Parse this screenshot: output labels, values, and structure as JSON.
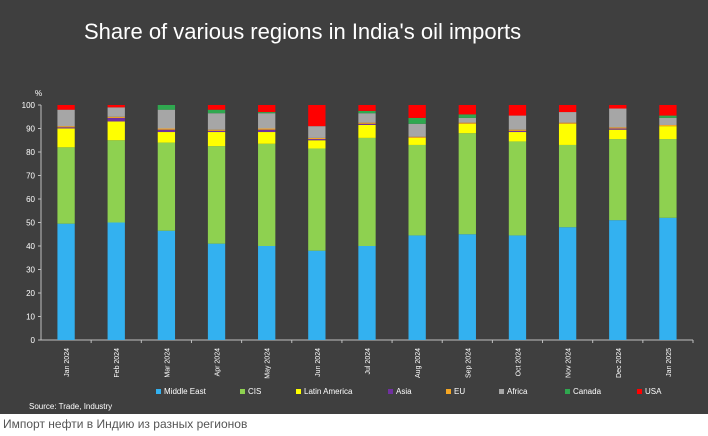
{
  "chart_data": {
    "type": "bar",
    "stacked": true,
    "title": "Share of various regions in India's oil imports",
    "ylabel": "%",
    "ylim": [
      0,
      100
    ],
    "yticks": [
      0,
      10,
      20,
      30,
      40,
      50,
      60,
      70,
      80,
      90,
      100
    ],
    "grid": false,
    "legend_position": "bottom",
    "categories": [
      "Jan 2024",
      "Feb 2024",
      "Mar 2024",
      "Apr 2024",
      "May 2024",
      "Jun 2024",
      "Jul 2024",
      "Aug 2024",
      "Sep 2024",
      "Oct 2024",
      "Nov 2024",
      "Dec 2024",
      "Jan 2025"
    ],
    "series": [
      {
        "name": "Middle East",
        "color": "#33b1f0",
        "values": [
          49.5,
          50,
          46.5,
          41,
          40,
          38,
          40,
          44.5,
          45,
          44.5,
          48,
          51,
          52
        ]
      },
      {
        "name": "CIS",
        "color": "#8ed150",
        "values": [
          32.5,
          35,
          37.5,
          41.5,
          43.5,
          43.5,
          46,
          38.5,
          43,
          40,
          35,
          34.5,
          33.5
        ]
      },
      {
        "name": "Latin America",
        "color": "#ffff00",
        "values": [
          8,
          8,
          4.5,
          6,
          5,
          3.5,
          5.5,
          3,
          4,
          4,
          9,
          4,
          5.5
        ]
      },
      {
        "name": "Asia",
        "color": "#7030a0",
        "values": [
          0.5,
          1.5,
          1,
          0.5,
          1,
          0.5,
          0.5,
          0,
          0,
          0.5,
          0,
          0.5,
          0
        ]
      },
      {
        "name": "EU",
        "color": "#f5a623",
        "values": [
          0.5,
          0.5,
          0.5,
          0.5,
          0.5,
          0.5,
          0.5,
          0.5,
          0.5,
          0.5,
          0.5,
          0.5,
          0.5
        ]
      },
      {
        "name": "Africa",
        "color": "#a6a6a6",
        "values": [
          7,
          4,
          8,
          7,
          6.5,
          5,
          4,
          5.5,
          2,
          6,
          4.5,
          8,
          3
        ]
      },
      {
        "name": "Canada",
        "color": "#2fa84f",
        "values": [
          0,
          0,
          2,
          1.5,
          0.5,
          0,
          1,
          2.5,
          1.5,
          0,
          0,
          0,
          1
        ]
      },
      {
        "name": "USA",
        "color": "#ff0000",
        "values": [
          2,
          1,
          0,
          2,
          3,
          9,
          2.5,
          5.5,
          4,
          4.5,
          3,
          1.5,
          4.5
        ]
      }
    ],
    "source": "Source: Trade, Industry"
  },
  "caption": "Импорт нефти в Индию из разных регионов"
}
